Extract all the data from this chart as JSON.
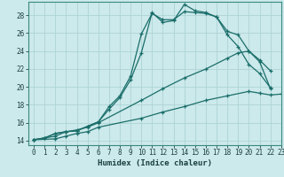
{
  "title": "",
  "xlabel": "Humidex (Indice chaleur)",
  "ylabel": "",
  "background_color": "#cce9eb",
  "grid_color": "#aed4d6",
  "line_color": "#1a6e6a",
  "xlim": [
    -0.5,
    23
  ],
  "ylim": [
    13.5,
    29.5
  ],
  "xticks": [
    0,
    1,
    2,
    3,
    4,
    5,
    6,
    7,
    8,
    9,
    10,
    11,
    12,
    13,
    14,
    15,
    16,
    17,
    18,
    19,
    20,
    21,
    22,
    23
  ],
  "yticks": [
    14,
    16,
    18,
    20,
    22,
    24,
    26,
    28
  ],
  "lines": [
    {
      "x": [
        0,
        1,
        2,
        3,
        4,
        5,
        6,
        7,
        8,
        9,
        10,
        11,
        12,
        13,
        14,
        15,
        16,
        17,
        18,
        19,
        20,
        21,
        22
      ],
      "y": [
        14.1,
        14.3,
        14.8,
        15.0,
        15.1,
        15.6,
        16.1,
        17.5,
        18.8,
        20.8,
        23.8,
        28.3,
        27.2,
        27.4,
        29.2,
        28.5,
        28.3,
        27.8,
        26.2,
        25.8,
        24.0,
        22.8,
        19.8
      ]
    },
    {
      "x": [
        0,
        1,
        2,
        3,
        4,
        5,
        6,
        7,
        8,
        9,
        10,
        11,
        12,
        13,
        14,
        15,
        16,
        17,
        18,
        19,
        20,
        21,
        22
      ],
      "y": [
        14.1,
        14.3,
        14.8,
        15.0,
        15.1,
        15.6,
        16.1,
        17.8,
        19.0,
        21.2,
        25.9,
        28.2,
        27.5,
        27.5,
        28.4,
        28.3,
        28.2,
        27.8,
        25.8,
        24.5,
        22.5,
        21.5,
        19.9
      ]
    },
    {
      "x": [
        0,
        2,
        3,
        4,
        5,
        6,
        10,
        12,
        14,
        16,
        18,
        19,
        20,
        21,
        22
      ],
      "y": [
        14.1,
        14.5,
        15.0,
        15.2,
        15.5,
        16.0,
        18.5,
        19.8,
        21.0,
        22.0,
        23.2,
        23.8,
        24.0,
        23.0,
        21.8
      ]
    },
    {
      "x": [
        0,
        2,
        3,
        4,
        5,
        6,
        10,
        12,
        14,
        16,
        18,
        20,
        21,
        22,
        23
      ],
      "y": [
        14.1,
        14.2,
        14.5,
        14.8,
        15.0,
        15.5,
        16.5,
        17.2,
        17.8,
        18.5,
        19.0,
        19.5,
        19.3,
        19.1,
        19.2
      ]
    }
  ]
}
